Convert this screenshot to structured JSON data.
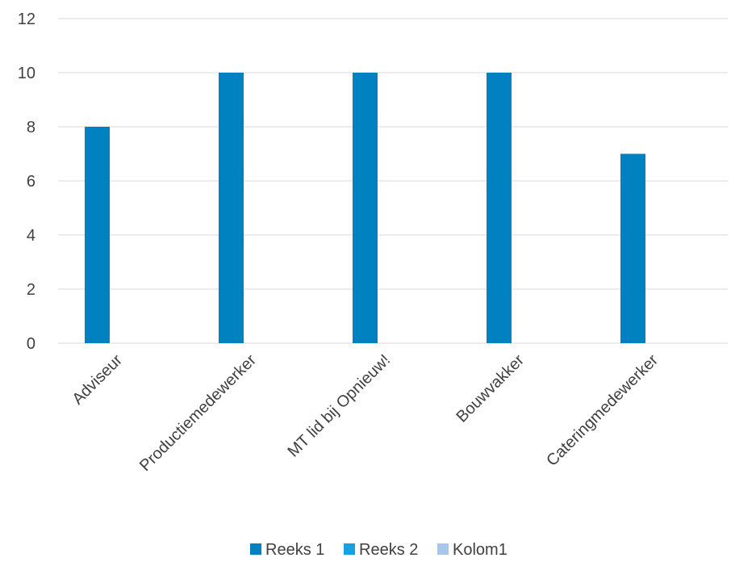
{
  "chart_data": {
    "type": "bar",
    "categories": [
      "Adviseur",
      "Productiemedewerker",
      "MT lid bij Opnieuw!",
      "Bouwvakker",
      "Cateringmedewerker"
    ],
    "series": [
      {
        "name": "Reeks 1",
        "values": [
          8,
          10,
          10,
          10,
          7
        ],
        "color": "#0081C0"
      },
      {
        "name": "Reeks 2",
        "values": [
          null,
          null,
          null,
          null,
          null
        ],
        "color": "#16A2E2"
      },
      {
        "name": "Kolom1",
        "values": [
          null,
          null,
          null,
          null,
          null
        ],
        "color": "#A5C8EA"
      }
    ],
    "ylim": [
      0,
      12
    ],
    "yticks": [
      "0",
      "2",
      "4",
      "6",
      "8",
      "10",
      "12"
    ],
    "grid": true,
    "legend_position": "bottom"
  }
}
